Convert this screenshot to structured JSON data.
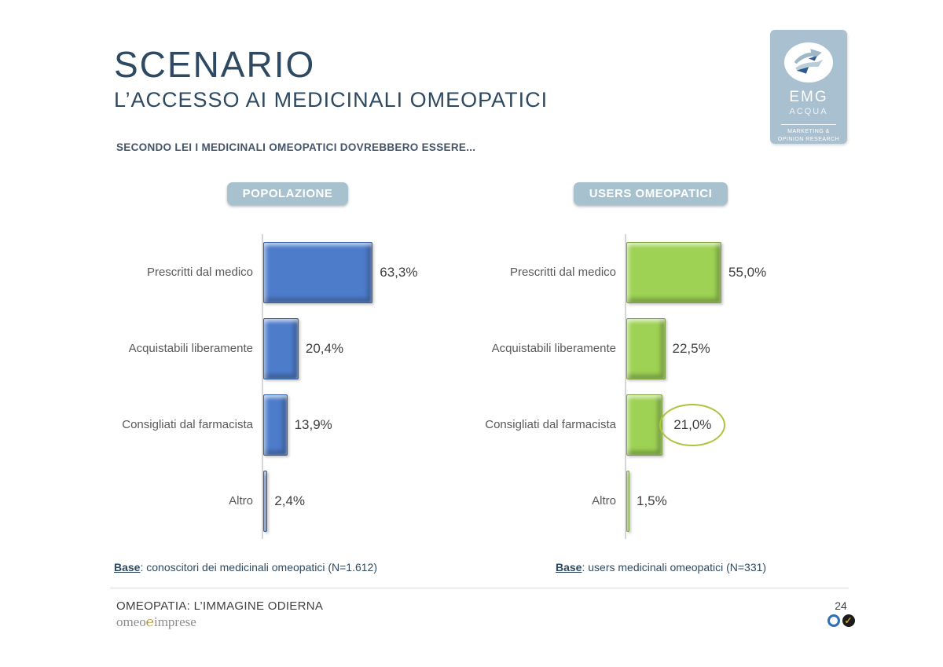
{
  "slide": {
    "title": "SCENARIO",
    "subtitle": "L’ACCESSO AI MEDICINALI OMEOPATICI",
    "question": "SECONDO LEI I MEDICINALI OMEOPATICI DOVREBBERO ESSERE..."
  },
  "logo": {
    "name": "EMG",
    "sub": "ACQUA",
    "tagline_line1": "MARKETING &",
    "tagline_line2": "OPINION RESEARCH",
    "bg_color": "#a9c0d0"
  },
  "chart_data": [
    {
      "type": "bar",
      "orientation": "horizontal",
      "title": "POPOLAZIONE",
      "categories": [
        "Prescritti dal medico",
        "Acquistabili liberamente",
        "Consigliati dal farmacista",
        "Altro"
      ],
      "values": [
        63.3,
        20.4,
        13.9,
        2.4
      ],
      "value_labels": [
        "63,3%",
        "20,4%",
        "13,9%",
        "2,4%"
      ],
      "xlim": [
        0,
        100
      ],
      "grid": false,
      "bar_color": "#4d7ccb",
      "bar_border": "#35609f",
      "base_prefix": "Base",
      "base_text": ": conoscitori dei medicinali omeopatici (N=1.612)"
    },
    {
      "type": "bar",
      "orientation": "horizontal",
      "title": "USERS OMEOPATICI",
      "categories": [
        "Prescritti dal medico",
        "Acquistabili liberamente",
        "Consigliati dal farmacista",
        "Altro"
      ],
      "values": [
        55.0,
        22.5,
        21.0,
        1.5
      ],
      "value_labels": [
        "55,0%",
        "22,5%",
        "21,0%",
        "1,5%"
      ],
      "xlim": [
        0,
        100
      ],
      "grid": false,
      "bar_color": "#9ed254",
      "bar_border": "#7ba23e",
      "highlight_index": 2,
      "highlight_color": "#aec43e",
      "base_prefix": "Base",
      "base_text": ": users medicinali omeopatici (N=331)"
    }
  ],
  "footer": {
    "title": "OMEOPATIA: L’IMMAGINE ODIERNA",
    "brand_part1": "omeo",
    "brand_glyph": "℮",
    "brand_part2": "imprese",
    "page": "24",
    "check_glyph": "✓"
  }
}
